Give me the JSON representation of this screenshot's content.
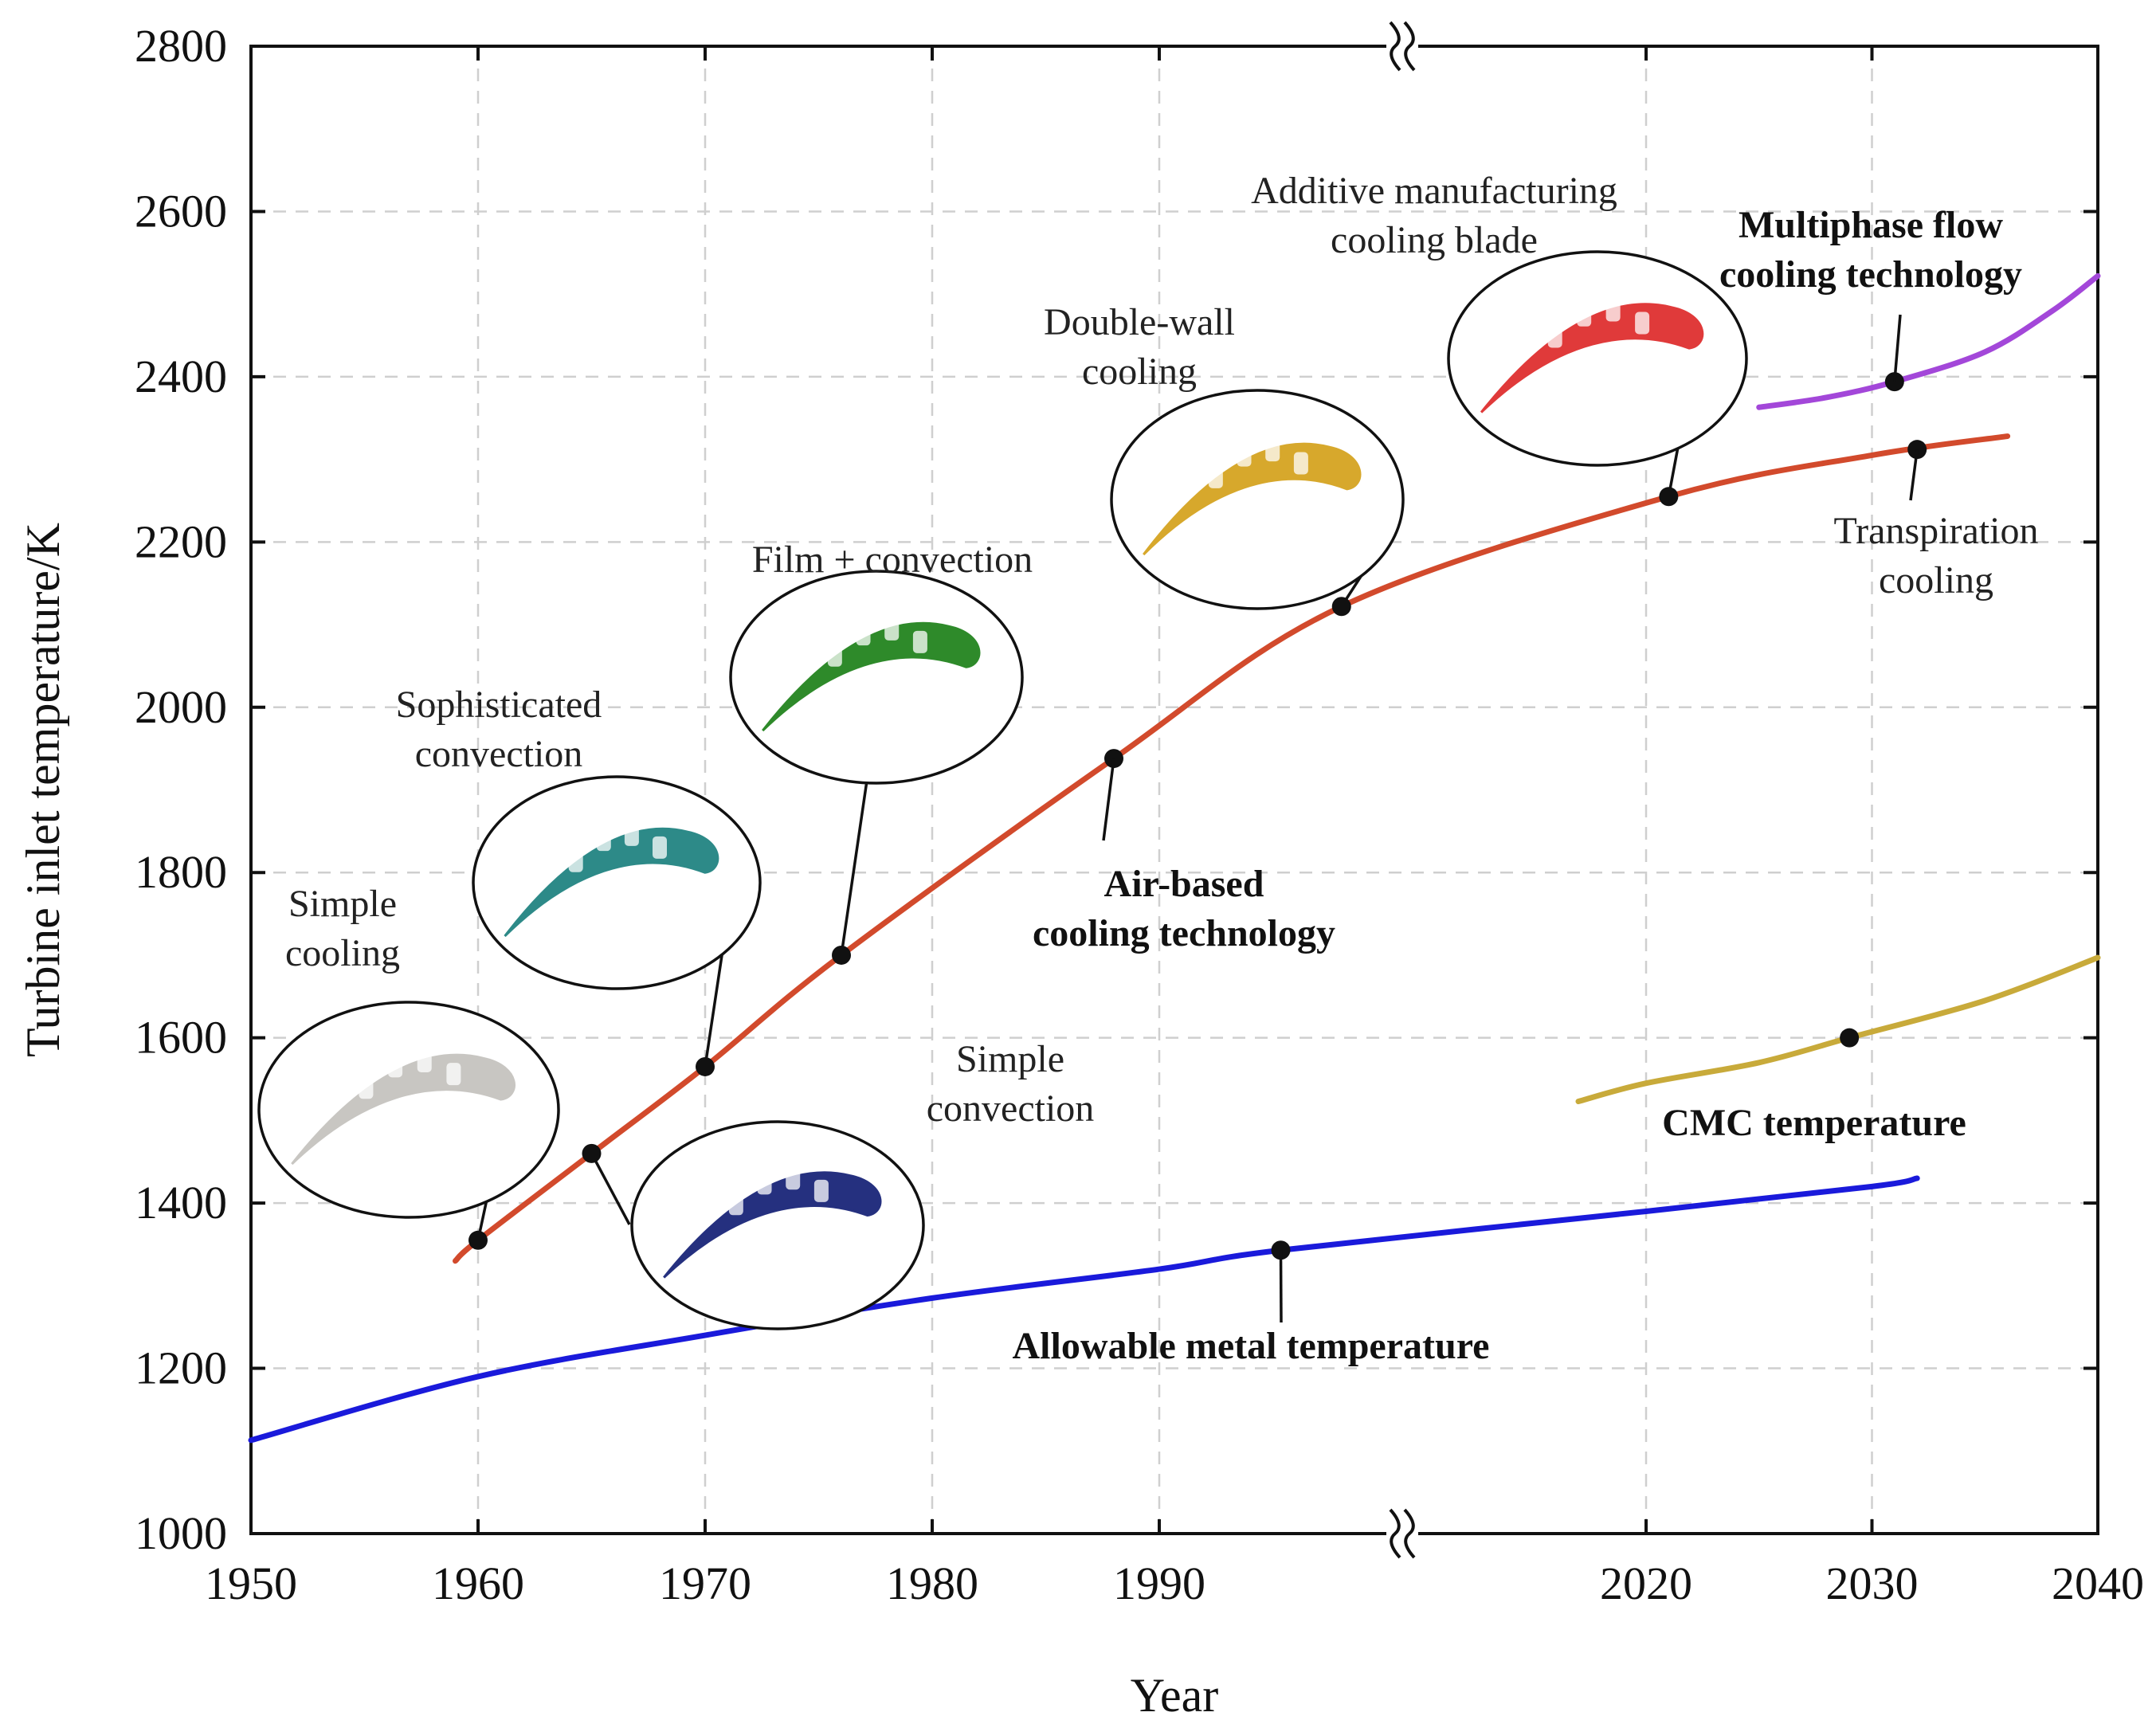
{
  "chart_data": {
    "type": "line",
    "xlabel": "Year",
    "ylabel": "Turbine inlet temperature/K",
    "xlim": [
      1950,
      2040
    ],
    "ylim": [
      1000,
      2800
    ],
    "x_ticks": [
      1950,
      1960,
      1970,
      1980,
      1990,
      2020,
      2030,
      2040
    ],
    "y_ticks": [
      1000,
      1200,
      1400,
      1600,
      1800,
      2000,
      2200,
      2400,
      2600,
      2800
    ],
    "axis_break": "between 1990 and 2020",
    "grid": true,
    "series": [
      {
        "name": "Air-based cooling technology",
        "label_lines": [
          "Air-based",
          "cooling technology"
        ],
        "color": "#d24a2c",
        "x": [
          1959,
          1960,
          1965,
          1970,
          1976,
          1988,
          1999,
          2021,
          2030,
          2036
        ],
        "y": [
          1330,
          1355,
          1460,
          1565,
          1700,
          1938,
          2122,
          2255,
          2305,
          2328
        ],
        "markers": [
          {
            "x": 1960,
            "y": 1355
          },
          {
            "x": 1965,
            "y": 1460
          },
          {
            "x": 1970,
            "y": 1565
          },
          {
            "x": 1976,
            "y": 1700
          },
          {
            "x": 1988,
            "y": 1938
          },
          {
            "x": 1999,
            "y": 2122
          },
          {
            "x": 2021,
            "y": 2255
          }
        ]
      },
      {
        "name": "Allowable metal temperature",
        "label_lines": [
          "Allowable metal temperature"
        ],
        "color": "#1a1adb",
        "x": [
          1950,
          1960,
          1970,
          1980,
          1990,
          1996,
          2020,
          2030,
          2032
        ],
        "y": [
          1113,
          1190,
          1240,
          1285,
          1320,
          1343,
          1390,
          1420,
          1430
        ],
        "markers": [
          {
            "x": 1996,
            "y": 1343
          }
        ]
      },
      {
        "name": "CMC temperature",
        "label_lines": [
          "CMC temperature"
        ],
        "color": "#c8aa3a",
        "x": [
          2015,
          2020,
          2025,
          2029,
          2035,
          2040
        ],
        "y": [
          1523,
          1545,
          1570,
          1600,
          1645,
          1697
        ],
        "markers": [
          {
            "x": 2029,
            "y": 1600
          }
        ]
      },
      {
        "name": "Multiphase flow cooling technology",
        "label_lines": [
          "Multiphase flow",
          "cooling technology"
        ],
        "color": "#a347d9",
        "x": [
          2025,
          2028,
          2031,
          2035,
          2038,
          2040
        ],
        "y": [
          2363,
          2375,
          2394,
          2430,
          2480,
          2522
        ],
        "markers": [
          {
            "x": 2031,
            "y": 2394
          }
        ]
      },
      {
        "name": "Transpiration cooling",
        "label_lines": [
          "Transpiration",
          "cooling"
        ],
        "color": "#d24a2c",
        "markers": [
          {
            "x": 2032,
            "y": 2312
          }
        ]
      }
    ],
    "blade_annotations": [
      {
        "label_lines": [
          "Simple",
          "cooling"
        ],
        "blade_color": "#c8c6c2",
        "year": 1960
      },
      {
        "label_lines": [
          "Simple",
          "convection"
        ],
        "blade_color": "#25307f",
        "year": 1965
      },
      {
        "label_lines": [
          "Sophisticated",
          "convection"
        ],
        "blade_color": "#2d8a88",
        "year": 1970
      },
      {
        "label_lines": [
          "Film + convection"
        ],
        "blade_color": "#2e8a2a",
        "year": 1976
      },
      {
        "label_lines": [
          "Double-wall",
          "cooling"
        ],
        "blade_color": "#d7a82c",
        "year": 1999
      },
      {
        "label_lines": [
          "Additive manufacturing",
          "cooling blade"
        ],
        "blade_color": "#e03a3a",
        "year": 2021
      }
    ]
  }
}
